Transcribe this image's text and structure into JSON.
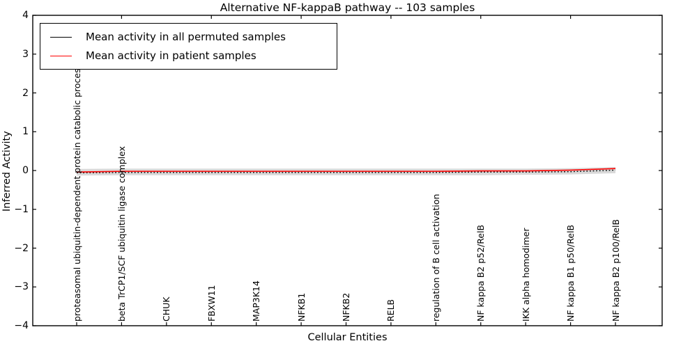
{
  "chart_data": {
    "type": "line",
    "title": "Alternative NF-kappaB pathway -- 103 samples",
    "xlabel": "Cellular Entities",
    "ylabel": "Inferred Activity",
    "ylim": [
      -4,
      4
    ],
    "ytick_labels": [
      "4",
      "3",
      "2",
      "1",
      "0",
      "−1",
      "−2",
      "−3",
      "−4"
    ],
    "ytick_values": [
      4,
      3,
      2,
      1,
      0,
      -1,
      -2,
      -3,
      -4
    ],
    "grid": false,
    "legend_position": "upper left",
    "categories": [
      "proteasomal ubiquitin-dependent protein catabolic process",
      "beta TrCP1/SCF ubiquitin ligase complex",
      "CHUK",
      "FBXW11",
      "MAP3K14",
      "NFKB1",
      "NFKB2",
      "RELB",
      "regulation of B cell activation",
      "NF kappa B2 p52/RelB",
      "IKK alpha homodimer",
      "NF kappa B1 p50/RelB",
      "NF kappa B2 p100/RelB"
    ],
    "series": [
      {
        "name": "Mean activity in all permuted samples",
        "color": "#000000",
        "style": "dotted",
        "values": [
          -0.06,
          -0.05,
          -0.05,
          -0.05,
          -0.05,
          -0.05,
          -0.05,
          -0.05,
          -0.05,
          -0.04,
          -0.04,
          -0.03,
          0.01
        ]
      },
      {
        "name": "Mean activity in patient samples",
        "color": "#ff0000",
        "style": "solid",
        "values": [
          -0.04,
          -0.02,
          -0.02,
          -0.02,
          -0.02,
          -0.02,
          -0.02,
          -0.02,
          -0.02,
          -0.01,
          -0.01,
          0.01,
          0.05
        ]
      }
    ],
    "band": {
      "color": "#d9d9d9",
      "upper": [
        0.04,
        0.05,
        0.05,
        0.05,
        0.05,
        0.05,
        0.05,
        0.05,
        0.05,
        0.05,
        0.05,
        0.06,
        0.09
      ],
      "lower": [
        -0.13,
        -0.12,
        -0.12,
        -0.12,
        -0.12,
        -0.12,
        -0.12,
        -0.12,
        -0.12,
        -0.12,
        -0.11,
        -0.1,
        -0.07
      ]
    }
  }
}
